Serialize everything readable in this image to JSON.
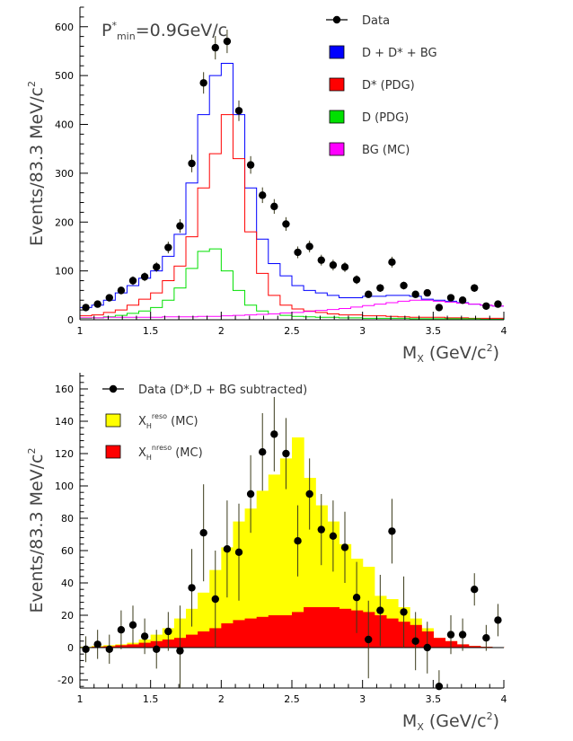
{
  "chart_data": [
    {
      "type": "line",
      "annotation": {
        "main": "P",
        "sup": "*",
        "sub": "min",
        "rest": "=0.9GeV/c"
      },
      "xlabel": {
        "main": "M",
        "sub": "X",
        "rest": " (GeV/c",
        "sup": "2",
        "close": ")"
      },
      "ylabel": {
        "main": "Events/83.3 MeV/c",
        "sup": "2"
      },
      "xlim": [
        1,
        4
      ],
      "ylim": [
        0,
        640
      ],
      "xticks": [
        1,
        1.5,
        2,
        2.5,
        3,
        3.5,
        4
      ],
      "yticks": [
        0,
        100,
        200,
        300,
        400,
        500,
        600
      ],
      "legend": [
        {
          "label": "Data",
          "symbol": "marker"
        },
        {
          "label": "D + D* + BG",
          "symbol": "box",
          "color": "#0000ff"
        },
        {
          "label": "D* (PDG)",
          "symbol": "box",
          "color": "#ff0000"
        },
        {
          "label": "D (PDG)",
          "symbol": "box",
          "color": "#00e000"
        },
        {
          "label": "BG (MC)",
          "symbol": "box",
          "color": "#ff00ff"
        }
      ],
      "bin_edges": [
        1,
        1.0833,
        1.1667,
        1.25,
        1.3333,
        1.4167,
        1.5,
        1.5833,
        1.6667,
        1.75,
        1.8333,
        1.9167,
        2,
        2.0833,
        2.1667,
        2.25,
        2.3333,
        2.4167,
        2.5,
        2.5833,
        2.6667,
        2.75,
        2.8333,
        2.9167,
        3,
        3.0833,
        3.1667,
        3.25,
        3.3333,
        3.4167,
        3.5,
        3.5833,
        3.6667,
        3.75,
        3.8333,
        3.9167,
        4
      ],
      "histograms": [
        {
          "name": "D + D* + BG",
          "color": "#0000ff",
          "values": [
            25,
            30,
            40,
            55,
            70,
            85,
            100,
            130,
            175,
            280,
            420,
            500,
            525,
            420,
            270,
            165,
            115,
            90,
            70,
            60,
            55,
            50,
            45,
            45,
            48,
            48,
            50,
            50,
            48,
            42,
            40,
            38,
            35,
            32,
            30,
            28
          ]
        },
        {
          "name": "D* (PDG)",
          "color": "#ff0000",
          "values": [
            8,
            10,
            15,
            20,
            30,
            42,
            55,
            80,
            110,
            170,
            270,
            340,
            420,
            330,
            180,
            95,
            50,
            30,
            22,
            18,
            15,
            12,
            10,
            10,
            8,
            8,
            7,
            6,
            5,
            5,
            5,
            4,
            4,
            3,
            3,
            3
          ]
        },
        {
          "name": "D (PDG)",
          "color": "#00e000",
          "values": [
            3,
            4,
            6,
            9,
            13,
            18,
            25,
            40,
            65,
            105,
            140,
            145,
            100,
            60,
            30,
            18,
            12,
            9,
            7,
            6,
            5,
            5,
            4,
            4,
            3,
            3,
            3,
            3,
            2,
            2,
            2,
            2,
            2,
            2,
            1,
            1
          ]
        },
        {
          "name": "BG (MC)",
          "color": "#ff00ff",
          "values": [
            4,
            4,
            5,
            5,
            5,
            5,
            5,
            6,
            6,
            6,
            7,
            7,
            8,
            9,
            10,
            11,
            12,
            14,
            15,
            17,
            19,
            21,
            23,
            26,
            29,
            32,
            35,
            38,
            40,
            40,
            38,
            36,
            34,
            32,
            30,
            28
          ]
        }
      ],
      "data": {
        "name": "Data",
        "x": [
          1.0417,
          1.125,
          1.2083,
          1.2917,
          1.375,
          1.4583,
          1.5417,
          1.625,
          1.7083,
          1.7917,
          1.875,
          1.9583,
          2.0417,
          2.125,
          2.2083,
          2.2917,
          2.375,
          2.4583,
          2.5417,
          2.625,
          2.7083,
          2.7917,
          2.875,
          2.9583,
          3.0417,
          3.125,
          3.2083,
          3.2917,
          3.375,
          3.4583,
          3.5417,
          3.625,
          3.7083,
          3.7917,
          3.875,
          3.9583
        ],
        "y": [
          25,
          32,
          45,
          60,
          80,
          88,
          108,
          148,
          192,
          320,
          485,
          557,
          570,
          428,
          317,
          255,
          232,
          196,
          138,
          150,
          122,
          112,
          108,
          82,
          52,
          65,
          118,
          70,
          52,
          55,
          25,
          45,
          40,
          65,
          28,
          32
        ],
        "err": [
          5,
          6,
          7,
          8,
          9,
          9,
          10,
          12,
          14,
          18,
          22,
          24,
          24,
          21,
          18,
          16,
          15,
          14,
          12,
          12,
          11,
          11,
          10,
          9,
          7,
          8,
          11,
          8,
          7,
          7,
          5,
          7,
          6,
          8,
          5,
          6
        ]
      }
    },
    {
      "type": "area",
      "xlabel": {
        "main": "M",
        "sub": "X",
        "rest": " (GeV/c",
        "sup": "2",
        "close": ")"
      },
      "ylabel": {
        "main": "Events/83.3 MeV/c",
        "sup": "2"
      },
      "xlim": [
        1,
        4
      ],
      "ylim": [
        -25,
        170
      ],
      "xticks": [
        1,
        1.5,
        2,
        2.5,
        3,
        3.5,
        4
      ],
      "yticks": [
        -20,
        0,
        20,
        40,
        60,
        80,
        100,
        120,
        140,
        160
      ],
      "legend": [
        {
          "label": "Data (D*,D + BG subtracted)",
          "symbol": "marker"
        },
        {
          "label": "X",
          "sub": "H",
          "sup": "reso",
          "after": " (MC)",
          "symbol": "box",
          "color": "#ffff00"
        },
        {
          "label": "X",
          "sub": "H",
          "sup": "nreso",
          "after": " (MC)",
          "symbol": "box",
          "color": "#ff0000"
        }
      ],
      "bin_edges": [
        1,
        1.0833,
        1.1667,
        1.25,
        1.3333,
        1.4167,
        1.5,
        1.5833,
        1.6667,
        1.75,
        1.8333,
        1.9167,
        2,
        2.0833,
        2.1667,
        2.25,
        2.3333,
        2.4167,
        2.5,
        2.5833,
        2.6667,
        2.75,
        2.8333,
        2.9167,
        3,
        3.0833,
        3.1667,
        3.25,
        3.3333,
        3.4167,
        3.5,
        3.5833,
        3.6667,
        3.75,
        3.8333,
        3.9167,
        4
      ],
      "histograms": [
        {
          "name": "X_H^reso (MC)",
          "color": "#ffff00",
          "values": [
            0.5,
            1,
            1.5,
            2,
            3,
            5,
            8,
            12,
            18,
            24,
            34,
            48,
            62,
            78,
            86,
            97,
            107,
            117,
            130,
            105,
            88,
            78,
            64,
            55,
            50,
            32,
            30,
            25,
            18,
            12,
            6,
            4,
            2,
            1,
            0.5,
            0.2
          ]
        },
        {
          "name": "X_H^nreso (MC)",
          "color": "#ff0000",
          "values": [
            0.2,
            0.5,
            0.8,
            1.5,
            2,
            3,
            4,
            5,
            6,
            8,
            10,
            12,
            15,
            17,
            18,
            19,
            20,
            20,
            22,
            25,
            25,
            25,
            24,
            23,
            22,
            20,
            18,
            16,
            14,
            10,
            6,
            4,
            2,
            1,
            0.5,
            0.2
          ]
        }
      ],
      "data": {
        "name": "Data (D*,D + BG subtracted)",
        "x": [
          1.0417,
          1.125,
          1.2083,
          1.2917,
          1.375,
          1.4583,
          1.5417,
          1.625,
          1.7083,
          1.7917,
          1.875,
          1.9583,
          2.0417,
          2.125,
          2.2083,
          2.2917,
          2.375,
          2.4583,
          2.5417,
          2.625,
          2.7083,
          2.7917,
          2.875,
          2.9583,
          3.0417,
          3.125,
          3.2083,
          3.2917,
          3.375,
          3.4583,
          3.5417,
          3.625,
          3.7083,
          3.7917,
          3.875,
          3.9583
        ],
        "y": [
          -1,
          2,
          -1,
          11,
          14,
          7,
          -1,
          10,
          -2,
          37,
          71,
          30,
          61,
          59,
          95,
          121,
          132,
          120,
          66,
          95,
          73,
          69,
          62,
          31,
          5,
          23,
          72,
          22,
          4,
          0,
          -24,
          8,
          8,
          36,
          6,
          17
        ],
        "err": [
          8,
          9,
          9,
          12,
          12,
          11,
          12,
          12,
          28,
          24,
          30,
          30,
          30,
          30,
          24,
          24,
          23,
          22,
          22,
          22,
          22,
          22,
          22,
          22,
          24,
          22,
          20,
          22,
          18,
          16,
          10,
          12,
          10,
          10,
          8,
          10
        ]
      }
    }
  ]
}
